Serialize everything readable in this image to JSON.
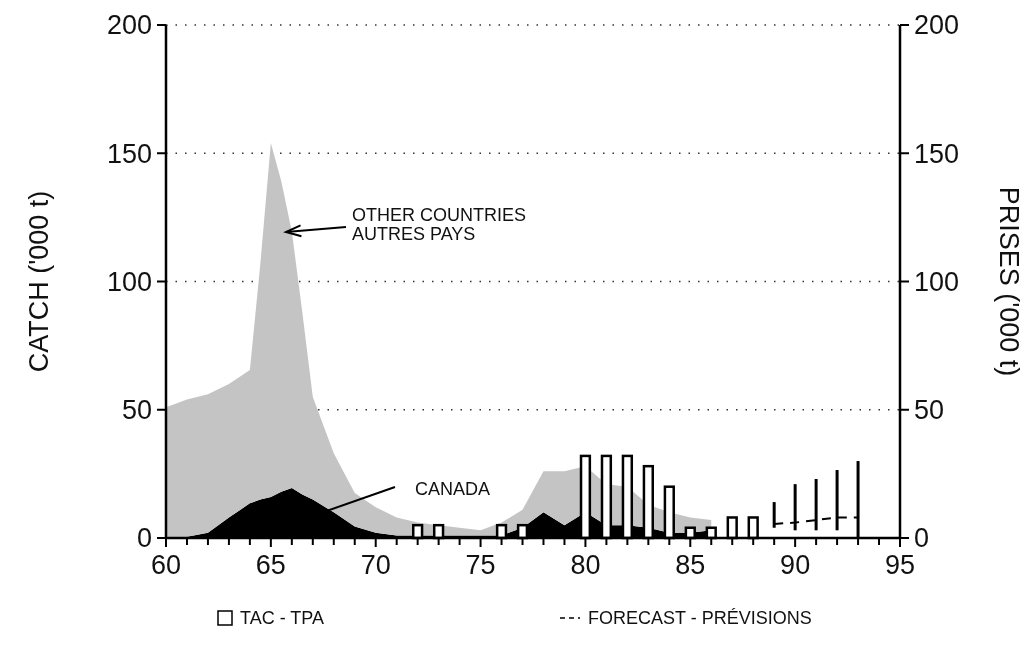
{
  "chart_data": {
    "type": "area",
    "stacked": true,
    "xlim": [
      60,
      95
    ],
    "xticks": [
      60,
      {
        "value": 61,
        "label": null
      },
      {
        "value": 62,
        "label": null
      },
      {
        "value": 63,
        "label": null
      },
      {
        "value": 64,
        "label": null
      },
      65,
      {
        "value": 66,
        "label": null
      },
      {
        "value": 67,
        "label": null
      },
      {
        "value": 68,
        "label": null
      },
      {
        "value": 69,
        "label": null
      },
      70,
      {
        "value": 71,
        "label": null
      },
      {
        "value": 72,
        "label": null
      },
      {
        "value": 73,
        "label": null
      },
      {
        "value": 74,
        "label": null
      },
      75,
      {
        "value": 76,
        "label": null
      },
      {
        "value": 77,
        "label": null
      },
      {
        "value": 78,
        "label": null
      },
      {
        "value": 79,
        "label": null
      },
      80,
      {
        "value": 81,
        "label": null
      },
      {
        "value": 82,
        "label": null
      },
      {
        "value": 83,
        "label": null
      },
      {
        "value": 84,
        "label": null
      },
      85,
      {
        "value": 86,
        "label": null
      },
      {
        "value": 87,
        "label": null
      },
      {
        "value": 88,
        "label": null
      },
      {
        "value": 89,
        "label": null
      },
      90,
      {
        "value": 91,
        "label": null
      },
      {
        "value": 92,
        "label": null
      },
      {
        "value": 93,
        "label": null
      },
      {
        "value": 94,
        "label": null
      },
      95
    ],
    "ylim": [
      0,
      200
    ],
    "yticks": [
      0,
      50,
      100,
      150,
      200
    ],
    "y2lim": [
      0,
      200
    ],
    "y2ticks": [
      0,
      50,
      100,
      150,
      200
    ],
    "ylabel": "CATCH ('000 t)",
    "y2label": "PRISES ('000 t)",
    "grid": "y",
    "legend": "bottom",
    "series": [
      {
        "name": "CANADA",
        "color": "#000000",
        "x": [
          60,
          61,
          62,
          63,
          64,
          64.5,
          65,
          65.5,
          66,
          66.5,
          67,
          68,
          69,
          70,
          71,
          72,
          73,
          74,
          75,
          76,
          77,
          78,
          79,
          80,
          81,
          82,
          83,
          84,
          85,
          86
        ],
        "values": [
          0,
          0.5,
          2,
          8,
          13.5,
          15,
          16,
          18,
          19.5,
          17,
          15,
          10,
          4.5,
          2,
          1,
          1,
          1,
          1,
          1,
          1,
          4,
          10,
          5,
          10,
          5,
          5,
          4,
          2,
          2,
          3
        ]
      },
      {
        "name": "OTHER COUNTRIES AUTRES PAYS",
        "color": "#c4c4c4",
        "x": [
          60,
          61,
          62,
          63,
          64,
          64.5,
          65,
          65.5,
          66,
          66.5,
          67,
          68,
          69,
          70,
          71,
          72,
          73,
          74,
          75,
          76,
          77,
          78,
          79,
          80,
          81,
          82,
          83,
          84,
          85,
          86
        ],
        "values": [
          51,
          53.5,
          54,
          52,
          52,
          92,
          138,
          121,
          100,
          71,
          40,
          23,
          13,
          10,
          7,
          5,
          4,
          3,
          2,
          5,
          7,
          16,
          21,
          18,
          16,
          15,
          9,
          8,
          6,
          4
        ]
      },
      {
        "name": "TAC - TPA",
        "type": "bar",
        "color": "#ffffff",
        "x": [
          72,
          73,
          76,
          77,
          80,
          81,
          82,
          83,
          84,
          85,
          86,
          87,
          88
        ],
        "values": [
          5,
          5,
          5,
          5,
          32,
          32,
          32,
          28,
          20,
          4,
          4,
          8,
          8
        ]
      },
      {
        "name": "FORECAST - PRÉVISIONS",
        "type": "line",
        "line_style": "dashed",
        "color": "#000000",
        "x": [
          89,
          90,
          91,
          92,
          93
        ],
        "values": [
          5.5,
          6,
          7,
          8,
          8
        ],
        "errors": [
          [
            4,
            14
          ],
          [
            3,
            21
          ],
          [
            3,
            23
          ],
          [
            3,
            26.5
          ],
          [
            0,
            30
          ]
        ]
      }
    ]
  }
}
